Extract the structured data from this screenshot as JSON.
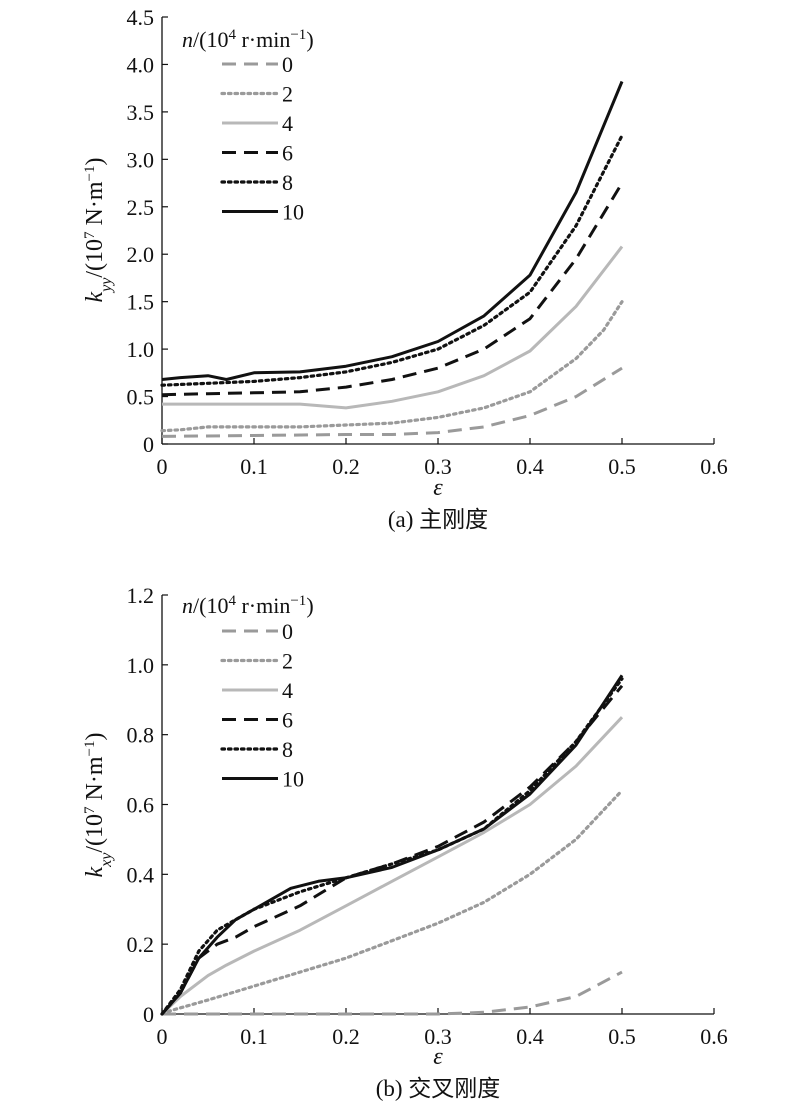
{
  "chart_data": [
    {
      "type": "line",
      "panel_id": "a",
      "caption": "(a) 主刚度",
      "xlabel": "ε",
      "ylabel": "k_yy/(10^7 N·m^-1)",
      "xlim": [
        0,
        0.6
      ],
      "ylim": [
        0,
        4.5
      ],
      "x_ticks": [
        "0",
        "0.1",
        "0.2",
        "0.3",
        "0.4",
        "0.5",
        "0.6"
      ],
      "y_ticks": [
        "0",
        "0.5",
        "1.0",
        "1.5",
        "2.0",
        "2.5",
        "3.0",
        "3.5",
        "4.0",
        "4.5"
      ],
      "legend_title": "n/(10^4 r·min^-1)",
      "legend_position": "top-left",
      "grid": false,
      "series": [
        {
          "name": "0",
          "style": "dashed",
          "color": "#9a9a9a",
          "points": [
            [
              0,
              0.08
            ],
            [
              0.1,
              0.09
            ],
            [
              0.2,
              0.1
            ],
            [
              0.25,
              0.1
            ],
            [
              0.3,
              0.12
            ],
            [
              0.35,
              0.18
            ],
            [
              0.4,
              0.3
            ],
            [
              0.45,
              0.5
            ],
            [
              0.5,
              0.8
            ]
          ]
        },
        {
          "name": "2",
          "style": "dotted",
          "color": "#9a9a9a",
          "points": [
            [
              0,
              0.14
            ],
            [
              0.02,
              0.15
            ],
            [
              0.05,
              0.18
            ],
            [
              0.1,
              0.18
            ],
            [
              0.15,
              0.18
            ],
            [
              0.2,
              0.2
            ],
            [
              0.25,
              0.22
            ],
            [
              0.3,
              0.28
            ],
            [
              0.35,
              0.38
            ],
            [
              0.4,
              0.55
            ],
            [
              0.45,
              0.9
            ],
            [
              0.48,
              1.2
            ],
            [
              0.5,
              1.5
            ]
          ]
        },
        {
          "name": "4",
          "style": "solid",
          "color": "#b8b8b8",
          "points": [
            [
              0,
              0.42
            ],
            [
              0.05,
              0.42
            ],
            [
              0.1,
              0.42
            ],
            [
              0.15,
              0.42
            ],
            [
              0.2,
              0.38
            ],
            [
              0.25,
              0.45
            ],
            [
              0.3,
              0.55
            ],
            [
              0.35,
              0.72
            ],
            [
              0.4,
              0.98
            ],
            [
              0.45,
              1.45
            ],
            [
              0.5,
              2.08
            ]
          ]
        },
        {
          "name": "6",
          "style": "dashed",
          "color": "#111111",
          "points": [
            [
              0,
              0.52
            ],
            [
              0.05,
              0.53
            ],
            [
              0.1,
              0.54
            ],
            [
              0.15,
              0.55
            ],
            [
              0.2,
              0.6
            ],
            [
              0.25,
              0.68
            ],
            [
              0.3,
              0.8
            ],
            [
              0.35,
              1.0
            ],
            [
              0.4,
              1.32
            ],
            [
              0.45,
              1.95
            ],
            [
              0.5,
              2.75
            ]
          ]
        },
        {
          "name": "8",
          "style": "dotted",
          "color": "#111111",
          "points": [
            [
              0,
              0.62
            ],
            [
              0.05,
              0.64
            ],
            [
              0.1,
              0.66
            ],
            [
              0.15,
              0.7
            ],
            [
              0.2,
              0.76
            ],
            [
              0.25,
              0.86
            ],
            [
              0.3,
              1.0
            ],
            [
              0.35,
              1.25
            ],
            [
              0.4,
              1.6
            ],
            [
              0.45,
              2.3
            ],
            [
              0.5,
              3.25
            ]
          ]
        },
        {
          "name": "10",
          "style": "solid",
          "color": "#111111",
          "points": [
            [
              0,
              0.68
            ],
            [
              0.02,
              0.7
            ],
            [
              0.05,
              0.72
            ],
            [
              0.07,
              0.68
            ],
            [
              0.1,
              0.75
            ],
            [
              0.15,
              0.76
            ],
            [
              0.2,
              0.82
            ],
            [
              0.25,
              0.92
            ],
            [
              0.3,
              1.08
            ],
            [
              0.35,
              1.35
            ],
            [
              0.4,
              1.78
            ],
            [
              0.45,
              2.65
            ],
            [
              0.5,
              3.82
            ]
          ]
        }
      ]
    },
    {
      "type": "line",
      "panel_id": "b",
      "caption": "(b) 交叉刚度",
      "xlabel": "ε",
      "ylabel": "k_xy/(10^7 N·m^-1)",
      "xlim": [
        0,
        0.6
      ],
      "ylim": [
        0,
        1.2
      ],
      "x_ticks": [
        "0",
        "0.1",
        "0.2",
        "0.3",
        "0.4",
        "0.5",
        "0.6"
      ],
      "y_ticks": [
        "0",
        "0.2",
        "0.4",
        "0.6",
        "0.8",
        "1.0",
        "1.2"
      ],
      "legend_title": "n/(10^4 r·min^-1)",
      "legend_position": "top-left",
      "grid": false,
      "series": [
        {
          "name": "0",
          "style": "dashed",
          "color": "#9a9a9a",
          "points": [
            [
              0,
              0
            ],
            [
              0.3,
              0
            ],
            [
              0.35,
              0.005
            ],
            [
              0.4,
              0.02
            ],
            [
              0.45,
              0.05
            ],
            [
              0.5,
              0.12
            ]
          ]
        },
        {
          "name": "2",
          "style": "dotted",
          "color": "#9a9a9a",
          "points": [
            [
              0,
              0
            ],
            [
              0.01,
              0.01
            ],
            [
              0.05,
              0.04
            ],
            [
              0.1,
              0.08
            ],
            [
              0.15,
              0.12
            ],
            [
              0.2,
              0.16
            ],
            [
              0.25,
              0.21
            ],
            [
              0.3,
              0.26
            ],
            [
              0.35,
              0.32
            ],
            [
              0.4,
              0.4
            ],
            [
              0.45,
              0.5
            ],
            [
              0.5,
              0.64
            ]
          ]
        },
        {
          "name": "4",
          "style": "solid",
          "color": "#b8b8b8",
          "points": [
            [
              0,
              0
            ],
            [
              0.02,
              0.05
            ],
            [
              0.05,
              0.11
            ],
            [
              0.07,
              0.14
            ],
            [
              0.1,
              0.18
            ],
            [
              0.15,
              0.24
            ],
            [
              0.2,
              0.31
            ],
            [
              0.25,
              0.38
            ],
            [
              0.3,
              0.45
            ],
            [
              0.35,
              0.52
            ],
            [
              0.4,
              0.6
            ],
            [
              0.45,
              0.71
            ],
            [
              0.5,
              0.85
            ]
          ]
        },
        {
          "name": "6",
          "style": "dashed",
          "color": "#111111",
          "points": [
            [
              0,
              0
            ],
            [
              0.02,
              0.06
            ],
            [
              0.04,
              0.16
            ],
            [
              0.06,
              0.2
            ],
            [
              0.08,
              0.22
            ],
            [
              0.1,
              0.25
            ],
            [
              0.15,
              0.31
            ],
            [
              0.2,
              0.39
            ],
            [
              0.25,
              0.43
            ],
            [
              0.3,
              0.48
            ],
            [
              0.35,
              0.55
            ],
            [
              0.4,
              0.65
            ],
            [
              0.45,
              0.78
            ],
            [
              0.5,
              0.94
            ]
          ]
        },
        {
          "name": "8",
          "style": "dotted",
          "color": "#111111",
          "points": [
            [
              0,
              0
            ],
            [
              0.02,
              0.07
            ],
            [
              0.04,
              0.18
            ],
            [
              0.06,
              0.24
            ],
            [
              0.08,
              0.27
            ],
            [
              0.1,
              0.3
            ],
            [
              0.15,
              0.35
            ],
            [
              0.2,
              0.39
            ],
            [
              0.25,
              0.43
            ],
            [
              0.3,
              0.47
            ],
            [
              0.35,
              0.53
            ],
            [
              0.4,
              0.64
            ],
            [
              0.45,
              0.78
            ],
            [
              0.5,
              0.96
            ]
          ]
        },
        {
          "name": "10",
          "style": "solid",
          "color": "#111111",
          "points": [
            [
              0,
              0
            ],
            [
              0.02,
              0.06
            ],
            [
              0.04,
              0.16
            ],
            [
              0.06,
              0.22
            ],
            [
              0.08,
              0.27
            ],
            [
              0.1,
              0.3
            ],
            [
              0.14,
              0.36
            ],
            [
              0.17,
              0.38
            ],
            [
              0.2,
              0.39
            ],
            [
              0.25,
              0.42
            ],
            [
              0.3,
              0.47
            ],
            [
              0.35,
              0.53
            ],
            [
              0.4,
              0.63
            ],
            [
              0.45,
              0.77
            ],
            [
              0.5,
              0.97
            ]
          ]
        }
      ]
    }
  ]
}
